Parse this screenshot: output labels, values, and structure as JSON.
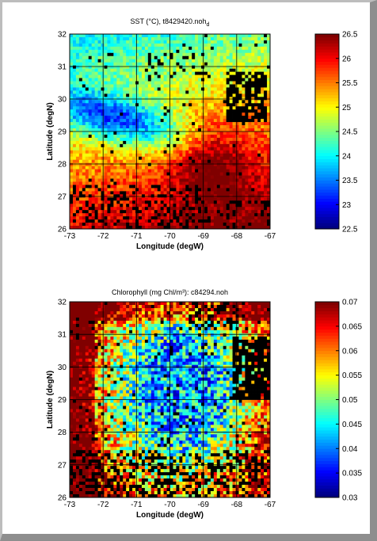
{
  "chart_data": [
    {
      "type": "heatmap",
      "title_text": "SST (°C), t8429420.noh",
      "title_sub": "d",
      "xlabel": "Longitude (degW)",
      "ylabel": "Latitude (degN)",
      "xlim": [
        -73,
        -67
      ],
      "ylim": [
        26,
        32
      ],
      "x_ticks": [
        "-73",
        "-72",
        "-71",
        "-70",
        "-69",
        "-68",
        "-67"
      ],
      "y_ticks": [
        "26",
        "27",
        "28",
        "29",
        "30",
        "31",
        "32"
      ],
      "grid": true,
      "colorbar": {
        "min": 22.5,
        "max": 26.5,
        "ticks": [
          "22.5",
          "23",
          "23.5",
          "24",
          "24.5",
          "25",
          "25.5",
          "26",
          "26.5"
        ]
      },
      "colormap": "jet",
      "land_color": "#000000"
    },
    {
      "type": "heatmap",
      "title_text": "Chlorophyll (mg Chl/m³): c84294.noh",
      "xlabel": "Longitude (degW)",
      "ylabel": "Latitude (degN)",
      "xlim": [
        -73,
        -67
      ],
      "ylim": [
        26,
        32
      ],
      "x_ticks": [
        "-73",
        "-72",
        "-71",
        "-70",
        "-69",
        "-68",
        "-67"
      ],
      "y_ticks": [
        "26",
        "27",
        "28",
        "29",
        "30",
        "31",
        "32"
      ],
      "grid": true,
      "colorbar": {
        "min": 0.03,
        "max": 0.07,
        "ticks": [
          "0.03",
          "0.035",
          "0.04",
          "0.045",
          "0.05",
          "0.055",
          "0.06",
          "0.065",
          "0.07"
        ]
      },
      "colormap": "jet",
      "land_color": "#000000"
    }
  ]
}
